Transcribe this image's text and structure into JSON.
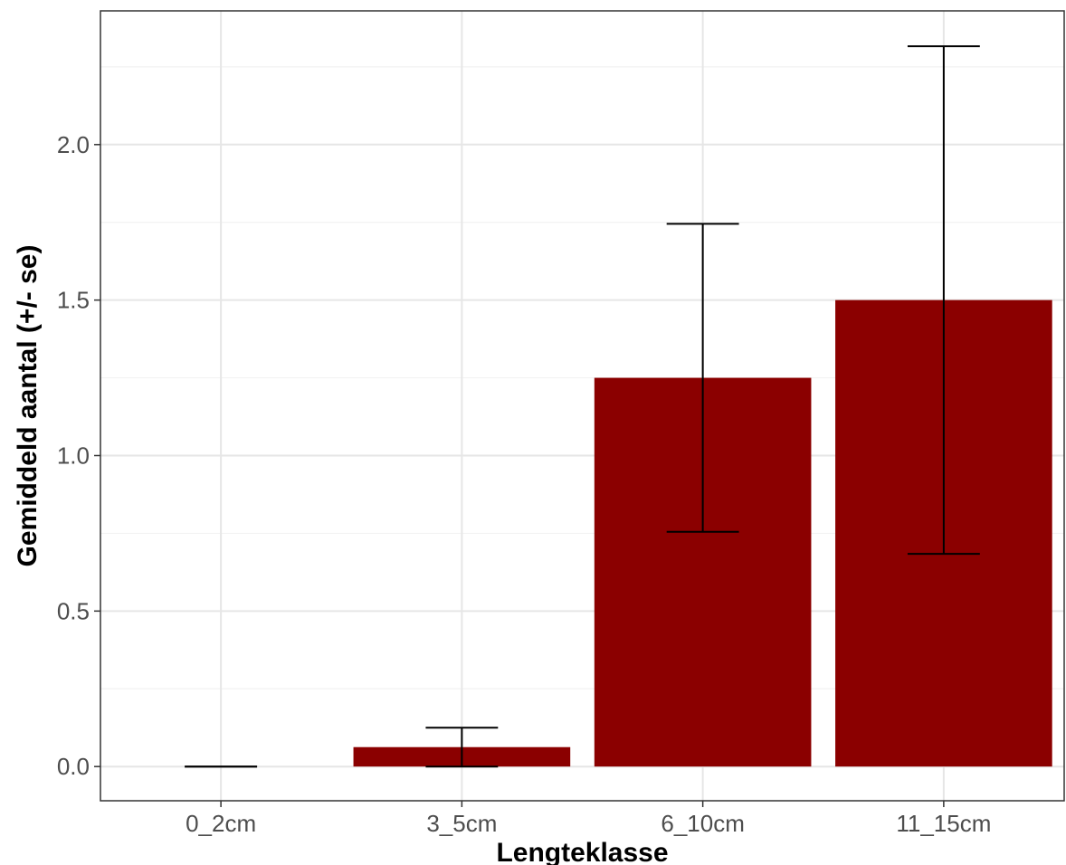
{
  "chart_data": {
    "type": "bar",
    "title": "",
    "xlabel": "Lengteklasse",
    "ylabel": "Gemiddeld aantal (+/- se)",
    "categories": [
      "0_2cm",
      "3_5cm",
      "6_10cm",
      "11_15cm"
    ],
    "values": [
      0,
      0.0625,
      1.25,
      1.5
    ],
    "error_low": [
      0,
      0,
      0.755,
      0.684
    ],
    "error_high": [
      0,
      0.125,
      1.745,
      2.316
    ],
    "ylim": [
      -0.11,
      2.43
    ],
    "yticks": [
      "0.0",
      "0.5",
      "1.0",
      "1.5",
      "2.0"
    ],
    "bar_color": "#8b0000",
    "grid": true,
    "legend": "none"
  }
}
